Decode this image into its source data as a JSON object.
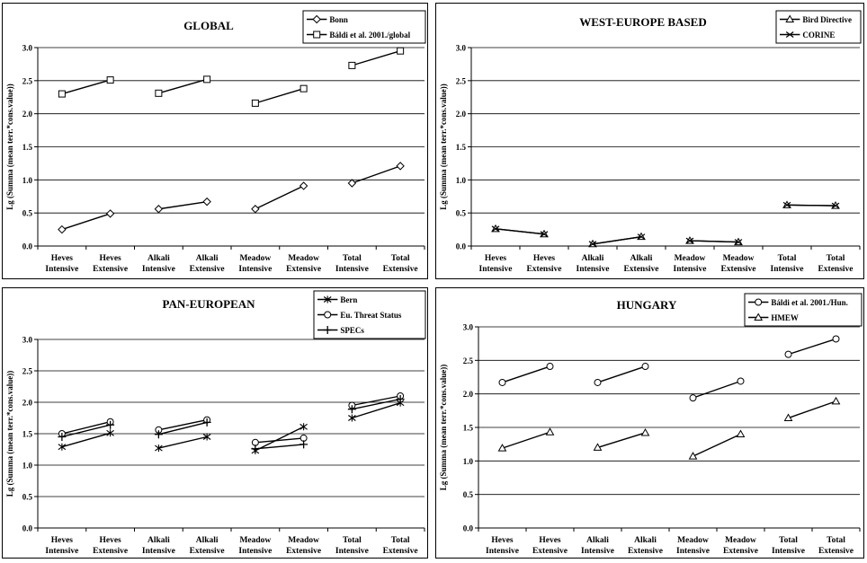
{
  "common": {
    "ylabel": "Lg (Summa (mean terr.*cons.value))",
    "yticks": [
      "0.0",
      "0.5",
      "1.0",
      "1.5",
      "2.0",
      "2.5",
      "3.0"
    ],
    "xticks": [
      {
        "l1": "Heves",
        "l2": "Intensive"
      },
      {
        "l1": "Heves",
        "l2": "Extensive"
      },
      {
        "l1": "Alkali",
        "l2": "Intensive"
      },
      {
        "l1": "Alkali",
        "l2": "Extensive"
      },
      {
        "l1": "Meadow",
        "l2": "Intensive"
      },
      {
        "l1": "Meadow",
        "l2": "Extensive"
      },
      {
        "l1": "Total",
        "l2": "Intensive"
      },
      {
        "l1": "Total",
        "l2": "Extensive"
      }
    ]
  },
  "chart_data": [
    {
      "type": "line",
      "title": "GLOBAL",
      "categories": [
        "Heves Intensive",
        "Heves Extensive",
        "Alkali Intensive",
        "Alkali Extensive",
        "Meadow Intensive",
        "Meadow Extensive",
        "Total Intensive",
        "Total Extensive"
      ],
      "ylabel": "Lg (Summa (mean terr.*cons.value))",
      "ylim": [
        0,
        3
      ],
      "legend_position": "top-right",
      "segments": "pairs",
      "series": [
        {
          "name": "Bonn",
          "marker": "diamond",
          "values": [
            0.25,
            0.49,
            0.56,
            0.67,
            0.56,
            0.91,
            0.95,
            1.21
          ]
        },
        {
          "name": "Báldi et al. 2001./global",
          "marker": "square",
          "values": [
            2.3,
            2.51,
            2.31,
            2.52,
            2.16,
            2.38,
            2.73,
            2.95
          ]
        }
      ]
    },
    {
      "type": "line",
      "title": "WEST-EUROPE BASED",
      "categories": [
        "Heves Intensive",
        "Heves Extensive",
        "Alkali Intensive",
        "Alkali Extensive",
        "Meadow Intensive",
        "Meadow Extensive",
        "Total Intensive",
        "Total Extensive"
      ],
      "ylabel": "Lg (Summa (mean terr.*cons.value))",
      "ylim": [
        0,
        3
      ],
      "legend_position": "top-right",
      "segments": "pairs",
      "series": [
        {
          "name": "Bird Directive",
          "marker": "triangle",
          "values": [
            0.26,
            0.18,
            0.03,
            0.14,
            0.08,
            0.06,
            0.62,
            0.61
          ]
        },
        {
          "name": "CORINE",
          "marker": "x",
          "values": [
            0.26,
            0.18,
            0.03,
            0.14,
            0.08,
            0.06,
            0.62,
            0.61
          ]
        }
      ]
    },
    {
      "type": "line",
      "title": "PAN-EUROPEAN",
      "categories": [
        "Heves Intensive",
        "Heves Extensive",
        "Alkali Intensive",
        "Alkali Extensive",
        "Meadow Intensive",
        "Meadow Extensive",
        "Total Intensive",
        "Total Extensive"
      ],
      "ylabel": "Lg (Summa (mean terr.*cons.value))",
      "ylim": [
        0,
        3
      ],
      "legend_position": "top-right",
      "segments": "pairs",
      "series": [
        {
          "name": "Bern",
          "marker": "star",
          "values": [
            1.29,
            1.51,
            1.27,
            1.45,
            1.23,
            1.61,
            1.75,
            1.99
          ]
        },
        {
          "name": "Eu. Threat Status",
          "marker": "circle",
          "values": [
            1.5,
            1.69,
            1.56,
            1.72,
            1.36,
            1.43,
            1.95,
            2.1
          ]
        },
        {
          "name": "SPECs",
          "marker": "plus",
          "values": [
            1.45,
            1.64,
            1.49,
            1.68,
            1.26,
            1.33,
            1.89,
            2.05
          ]
        }
      ]
    },
    {
      "type": "line",
      "title": "HUNGARY",
      "categories": [
        "Heves Intensive",
        "Heves Extensive",
        "Alkali Intensive",
        "Alkali Extensive",
        "Meadow Intensive",
        "Meadow Extensive",
        "Total Intensive",
        "Total Extensive"
      ],
      "ylabel": "Lg (Summa (mean terr.*cons.value))",
      "ylim": [
        0,
        3
      ],
      "legend_position": "top-right",
      "segments": "pairs",
      "series": [
        {
          "name": "Báldi et al. 2001./Hun.",
          "marker": "circle",
          "values": [
            2.17,
            2.41,
            2.17,
            2.41,
            1.94,
            2.19,
            2.59,
            2.82
          ]
        },
        {
          "name": "HMEW",
          "marker": "triangle",
          "values": [
            1.19,
            1.43,
            1.2,
            1.42,
            1.07,
            1.4,
            1.64,
            1.89
          ]
        }
      ]
    }
  ]
}
